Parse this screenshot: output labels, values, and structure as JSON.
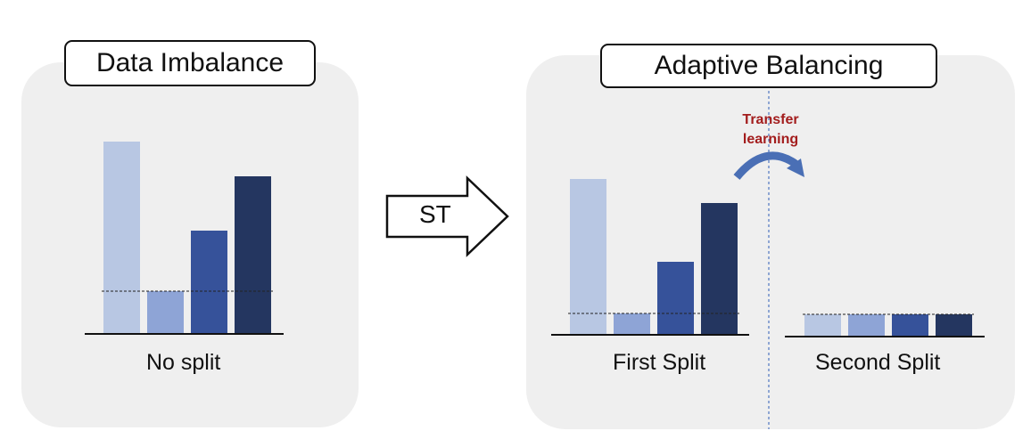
{
  "left_panel": {
    "title": "Data Imbalance",
    "caption": "No split",
    "bars": [
      {
        "value": 216,
        "color": "#b8c7e3"
      },
      {
        "value": 48,
        "color": "#8ea4d6"
      },
      {
        "value": 116,
        "color": "#36529a"
      },
      {
        "value": 177,
        "color": "#243660"
      }
    ],
    "threshold": 48
  },
  "arrow": {
    "label": "ST"
  },
  "right_panel": {
    "title": "Adaptive Balancing",
    "transfer_label_line1": "Transfer",
    "transfer_label_line2": "learning",
    "first_split": {
      "caption": "First Split",
      "bars": [
        {
          "value": 175,
          "color": "#b8c7e3"
        },
        {
          "value": 24,
          "color": "#8ea4d6"
        },
        {
          "value": 82,
          "color": "#36529a"
        },
        {
          "value": 148,
          "color": "#243660"
        }
      ],
      "threshold": 24
    },
    "second_split": {
      "caption": "Second Split",
      "bars": [
        {
          "value": 25,
          "color": "#b8c7e3"
        },
        {
          "value": 25,
          "color": "#8ea4d6"
        },
        {
          "value": 25,
          "color": "#36529a"
        },
        {
          "value": 25,
          "color": "#243660"
        }
      ],
      "threshold": 25
    }
  },
  "colors": {
    "panel_bg": "#efefef",
    "transfer_text": "#a31d1d",
    "curve_arrow": "#4a6fb5",
    "divider": "#5b7fc4"
  }
}
